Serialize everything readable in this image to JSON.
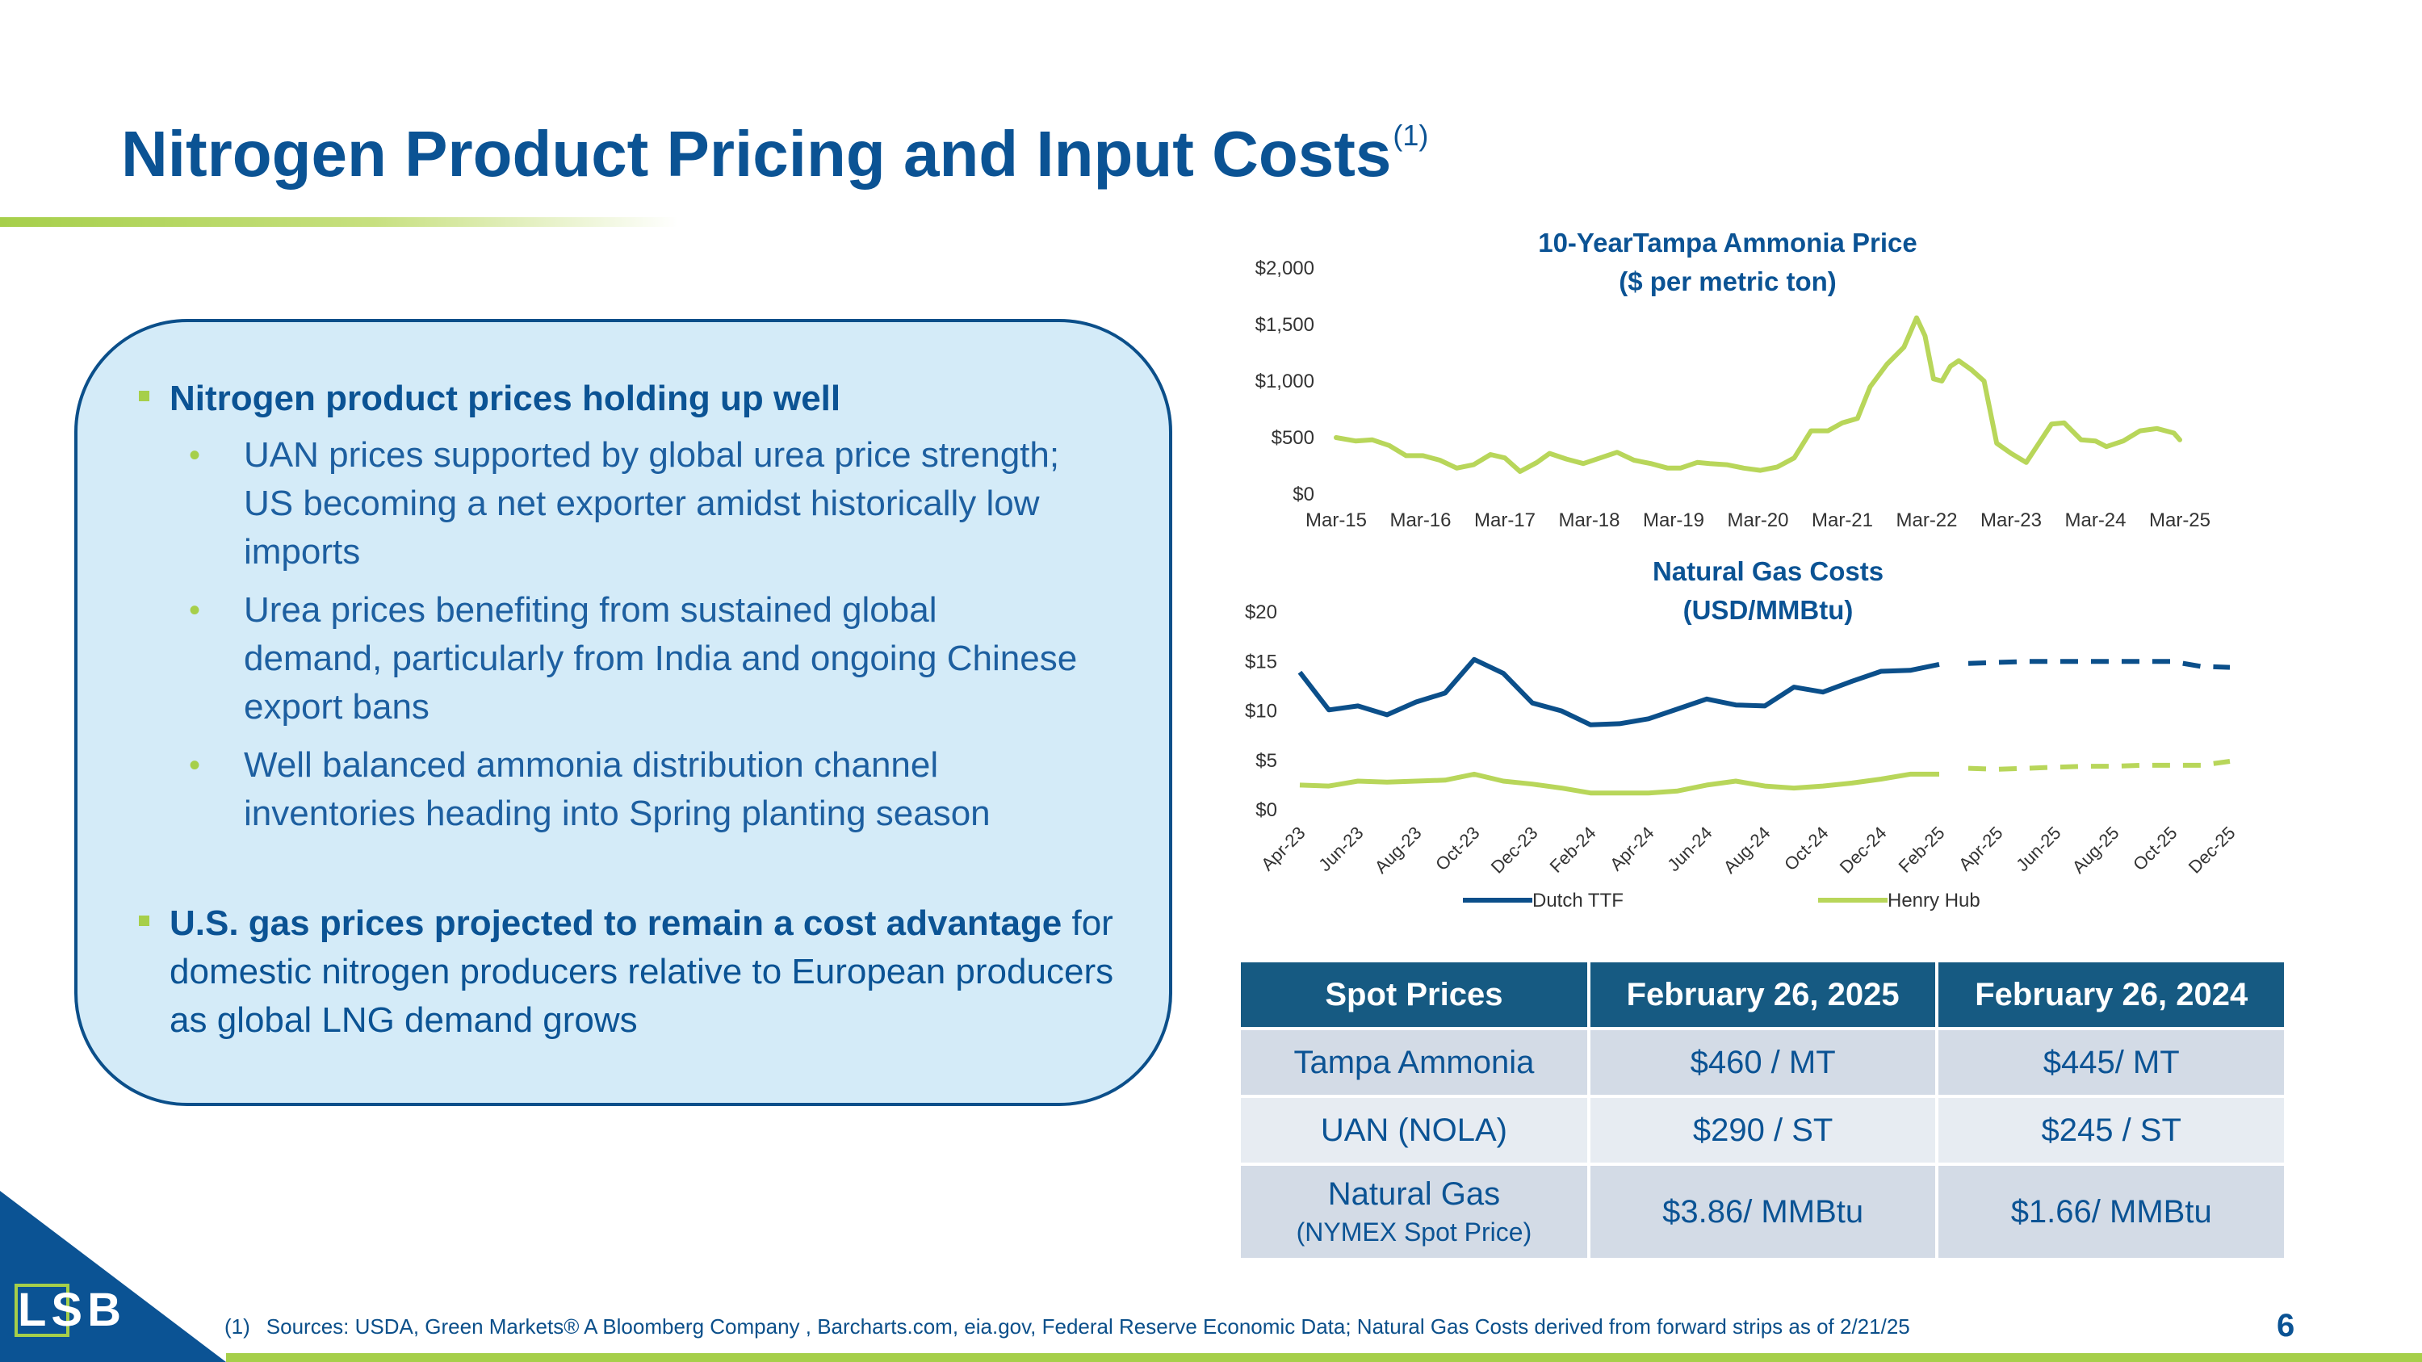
{
  "slide": {
    "title": "Nitrogen Product Pricing and Input Costs",
    "title_note": "(1)",
    "page_number": "6",
    "footnote_num": "(1)",
    "footnote": "Sources: USDA, Green Markets® A Bloomberg Company , Barcharts.com, eia.gov, Federal Reserve Economic Data; Natural Gas Costs derived from forward strips as of 2/21/25",
    "logo_text": "LSB"
  },
  "bullets": {
    "b1_title": "Nitrogen product prices holding up well",
    "sub1": "UAN prices supported by global urea price strength; US becoming a net exporter amidst historically low imports",
    "sub2": "Urea prices benefiting from sustained global demand, particularly from India and ongoing Chinese export bans",
    "sub3": "Well balanced ammonia distribution channel inventories heading into Spring planting season",
    "b2_bold": "U.S. gas prices projected to remain a cost advantage",
    "b2_rest": " for domestic nitrogen producers relative to European producers as global LNG demand grows"
  },
  "colors": {
    "navy": "#0b5394",
    "green": "#a6cf4a",
    "table_header": "#165a82",
    "table_cell": "#d3dbe6",
    "box_fill": "#d4ebf8"
  },
  "chart_data": [
    {
      "type": "line",
      "title": "10-YearTampa Ammonia Price",
      "subtitle": "($ per metric ton)",
      "y_tick_labels": [
        "$0",
        "$500",
        "$1,000",
        "$1,500",
        "$2,000"
      ],
      "ylim": [
        0,
        2000
      ],
      "x_tick_labels": [
        "Mar-15",
        "Mar-16",
        "Mar-17",
        "Mar-18",
        "Mar-19",
        "Mar-20",
        "Mar-21",
        "Mar-22",
        "Mar-23",
        "Mar-24",
        "Mar-25"
      ],
      "legend": "none",
      "grid": false,
      "series": [
        {
          "color": "#b8d65a",
          "x": [
            2015.17,
            2015.4,
            2015.6,
            2015.8,
            2016.0,
            2016.2,
            2016.4,
            2016.6,
            2016.8,
            2017.0,
            2017.17,
            2017.35,
            2017.55,
            2017.7,
            2017.9,
            2018.1,
            2018.3,
            2018.5,
            2018.7,
            2018.9,
            2019.1,
            2019.25,
            2019.45,
            2019.6,
            2019.8,
            2020.0,
            2020.2,
            2020.4,
            2020.6,
            2020.8,
            2021.0,
            2021.17,
            2021.35,
            2021.5,
            2021.7,
            2021.9,
            2022.05,
            2022.15,
            2022.25,
            2022.35,
            2022.45,
            2022.55,
            2022.7,
            2022.85,
            2023.0,
            2023.17,
            2023.35,
            2023.5,
            2023.65,
            2023.8,
            2024.0,
            2024.17,
            2024.3,
            2024.5,
            2024.7,
            2024.9,
            2025.1,
            2025.17
          ],
          "values": [
            500,
            470,
            480,
            430,
            340,
            340,
            300,
            230,
            260,
            350,
            320,
            200,
            280,
            360,
            310,
            270,
            320,
            370,
            300,
            270,
            230,
            230,
            280,
            270,
            260,
            230,
            210,
            240,
            320,
            560,
            560,
            630,
            670,
            950,
            1150,
            1300,
            1560,
            1400,
            1020,
            1000,
            1130,
            1180,
            1100,
            1000,
            450,
            360,
            280,
            450,
            620,
            630,
            480,
            470,
            420,
            470,
            560,
            580,
            540,
            480
          ]
        }
      ]
    },
    {
      "type": "line",
      "title": "Natural Gas Costs",
      "subtitle": "(USD/MMBtu)",
      "y_tick_labels": [
        "$0",
        "$5",
        "$10",
        "$15",
        "$20"
      ],
      "ylim": [
        0,
        20
      ],
      "categories": [
        "Apr-23",
        "May-23",
        "Jun-23",
        "Jul-23",
        "Aug-23",
        "Sep-23",
        "Oct-23",
        "Nov-23",
        "Dec-23",
        "Jan-24",
        "Feb-24",
        "Mar-24",
        "Apr-24",
        "May-24",
        "Jun-24",
        "Jul-24",
        "Aug-24",
        "Sep-24",
        "Oct-24",
        "Nov-24",
        "Dec-24",
        "Jan-25",
        "Feb-25",
        "Mar-25",
        "Apr-25",
        "May-25",
        "Jun-25",
        "Jul-25",
        "Aug-25",
        "Sep-25",
        "Oct-25",
        "Nov-25",
        "Dec-25"
      ],
      "x_tick_labels": [
        "Apr-23",
        "Jun-23",
        "Aug-23",
        "Oct-23",
        "Dec-23",
        "Feb-24",
        "Apr-24",
        "Jun-24",
        "Aug-24",
        "Oct-24",
        "Dec-24",
        "Feb-25",
        "Apr-25",
        "Jun-25",
        "Aug-25",
        "Oct-25",
        "Dec-25"
      ],
      "actual_through": "Feb-25",
      "forecast_from": "Mar-25",
      "legend": "bottom",
      "grid": false,
      "series": [
        {
          "name": "Dutch TTF",
          "color": "#0b4f8a",
          "values": [
            13.9,
            10.1,
            10.5,
            9.6,
            10.9,
            11.8,
            15.2,
            13.8,
            10.8,
            10.0,
            8.6,
            8.7,
            9.2,
            10.2,
            11.2,
            10.6,
            10.5,
            12.4,
            11.9,
            13.0,
            14.0,
            14.1,
            14.7,
            14.8,
            14.9,
            15.0,
            15.0,
            15.0,
            15.0,
            15.0,
            15.0,
            14.5,
            14.4
          ]
        },
        {
          "name": "Henry Hub",
          "color": "#b8d65a",
          "values": [
            2.5,
            2.4,
            2.9,
            2.8,
            2.9,
            3.0,
            3.6,
            2.9,
            2.6,
            2.2,
            1.7,
            1.7,
            1.7,
            1.9,
            2.5,
            2.9,
            2.4,
            2.2,
            2.4,
            2.7,
            3.1,
            3.6,
            3.6,
            4.2,
            4.1,
            4.2,
            4.3,
            4.4,
            4.4,
            4.5,
            4.5,
            4.5,
            4.9
          ]
        }
      ]
    }
  ],
  "table": {
    "headers": [
      "Spot Prices",
      "February 26, 2025",
      "February 26, 2024"
    ],
    "rows": [
      [
        "Tampa Ammonia",
        "$460 / MT",
        "$445/ MT"
      ],
      [
        "UAN  (NOLA)",
        "$290 / ST",
        "$245 / ST"
      ]
    ],
    "row3": {
      "label": "Natural Gas",
      "label_sub": "(NYMEX Spot Price)",
      "v2025": "$3.86/ MMBtu",
      "v2024": "$1.66/ MMBtu"
    }
  }
}
